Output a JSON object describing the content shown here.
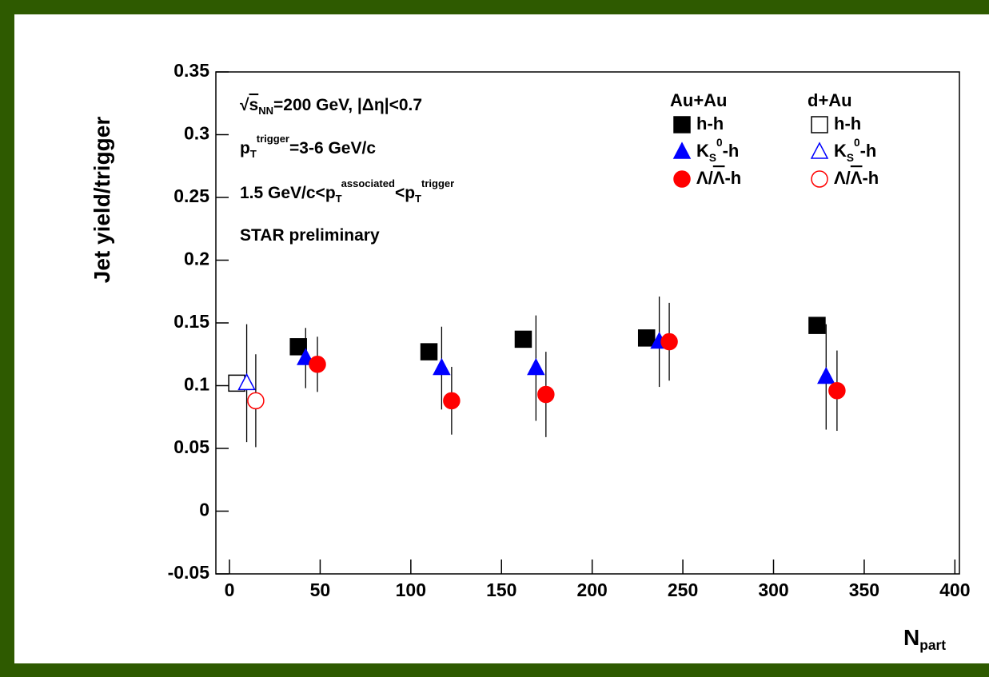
{
  "chart_data": {
    "type": "scatter",
    "xlabel": [
      {
        "text": "N"
      },
      {
        "text": "part",
        "style": "sub"
      }
    ],
    "ylabel": [
      {
        "text": "Jet yield/trigger"
      }
    ],
    "xlim": [
      -7.5,
      402.5
    ],
    "ylim": [
      -0.05,
      0.35
    ],
    "xticks": [
      0,
      50,
      100,
      150,
      200,
      250,
      300,
      350,
      400
    ],
    "yticks": [
      -0.05,
      0,
      0.05,
      0.1,
      0.15,
      0.2,
      0.25,
      0.3,
      0.35
    ],
    "annotations": [
      [
        {
          "text": "√"
        },
        {
          "text": "s",
          "style": "over"
        },
        {
          "text": "NN",
          "style": "sub"
        },
        {
          "text": "=200 GeV, |Δη|<0.7"
        }
      ],
      [
        {
          "text": "p"
        },
        {
          "text": "T",
          "style": "sub"
        },
        {
          "text": "trigger",
          "style": "sup"
        },
        {
          "text": "=3-6 GeV/c"
        }
      ],
      [
        {
          "text": "1.5 GeV/c<p"
        },
        {
          "text": "T",
          "style": "sub"
        },
        {
          "text": "associated",
          "style": "sup"
        },
        {
          "text": "<p"
        },
        {
          "text": "T",
          "style": "sub"
        },
        {
          "text": "trigger",
          "style": "sup"
        }
      ],
      [
        {
          "text": "STAR preliminary"
        }
      ]
    ],
    "legend_groups": [
      "Au+Au",
      "d+Au"
    ],
    "series": [
      {
        "name": [
          {
            "text": "h-h"
          }
        ],
        "group": 0,
        "marker": "square",
        "filled": true,
        "color": "#000000",
        "x": [
          38,
          110,
          162,
          230,
          324
        ],
        "values": [
          0.131,
          0.127,
          0.137,
          0.138,
          0.148
        ]
      },
      {
        "name": [
          {
            "text": "K"
          },
          {
            "text": "S",
            "style": "sub"
          },
          {
            "text": "0",
            "style": "sup"
          },
          {
            "text": "-h"
          }
        ],
        "group": 0,
        "marker": "triangle",
        "filled": true,
        "color": "#0000ff",
        "x": [
          42,
          117,
          169,
          237,
          329
        ],
        "values": [
          0.122,
          0.114,
          0.114,
          0.135,
          0.107
        ],
        "errors": [
          0.024,
          0.033,
          0.042,
          0.036,
          0.042
        ]
      },
      {
        "name": [
          {
            "text": "Λ/"
          },
          {
            "text": "Λ",
            "style": "over"
          },
          {
            "text": "-h"
          }
        ],
        "group": 0,
        "marker": "circle",
        "filled": true,
        "color": "#ff0000",
        "x": [
          48.5,
          122.5,
          174.5,
          242.5,
          335
        ],
        "values": [
          0.117,
          0.088,
          0.093,
          0.135,
          0.096
        ],
        "errors": [
          0.022,
          0.027,
          0.034,
          0.031,
          0.032
        ]
      },
      {
        "name": [
          {
            "text": "h-h"
          }
        ],
        "group": 1,
        "marker": "square",
        "filled": false,
        "color": "#000000",
        "x": [
          4
        ],
        "values": [
          0.102
        ]
      },
      {
        "name": [
          {
            "text": "K"
          },
          {
            "text": "S",
            "style": "sub"
          },
          {
            "text": "0",
            "style": "sup"
          },
          {
            "text": "-h"
          }
        ],
        "group": 1,
        "marker": "triangle",
        "filled": false,
        "color": "#0000ff",
        "x": [
          9.5
        ],
        "values": [
          0.102
        ],
        "errors": [
          0.047
        ]
      },
      {
        "name": [
          {
            "text": "Λ/"
          },
          {
            "text": "Λ",
            "style": "over"
          },
          {
            "text": "-h"
          }
        ],
        "group": 1,
        "marker": "circle",
        "filled": false,
        "color": "#ff0000",
        "x": [
          14.5
        ],
        "values": [
          0.088
        ],
        "errors": [
          0.037
        ]
      }
    ]
  }
}
